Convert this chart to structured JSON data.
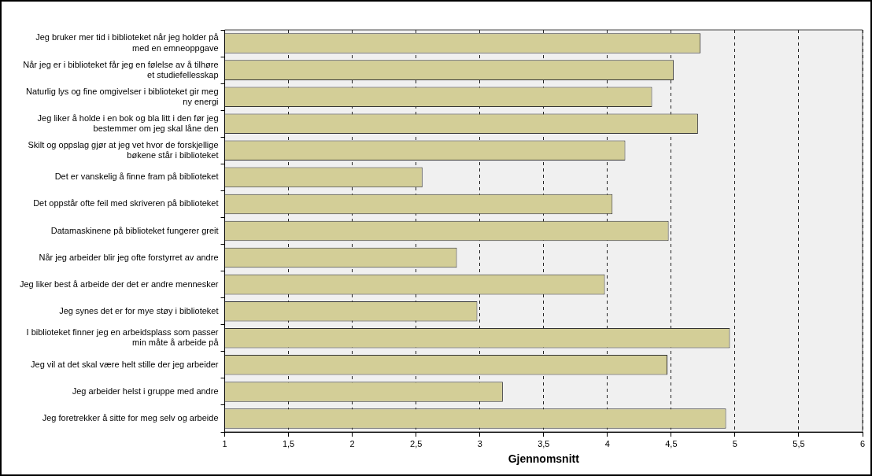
{
  "chart_data": {
    "type": "bar",
    "orientation": "horizontal",
    "xlabel": "Gjennomsnitt",
    "categories": [
      "Jeg bruker mer tid i biblioteket når jeg holder på med en emneoppgave",
      "Når jeg er i biblioteket får jeg en følelse av å tilhøre et studiefellesskap",
      "Naturlig lys og fine omgivelser i biblioteket gir meg ny energi",
      "Jeg liker å holde i en bok og bla litt i den før jeg bestemmer om jeg skal låne den",
      "Skilt og oppslag gjør at jeg vet hvor de forskjellige bøkene står i biblioteket",
      "Det er vanskelig å finne fram på biblioteket",
      "Det oppstår ofte feil med skriveren på biblioteket",
      "Datamaskinene på biblioteket fungerer greit",
      "Når jeg arbeider blir jeg ofte forstyrret av andre",
      "Jeg liker best å arbeide der det er andre mennesker",
      "Jeg synes det er for mye støy i biblioteket",
      "I biblioteket finner jeg en arbeidsplass som passer min måte å arbeide på",
      "Jeg vil at det skal være helt stille der jeg arbeider",
      "Jeg arbeider helst i gruppe med andre",
      "Jeg foretrekker å sitte for meg selv og arbeide"
    ],
    "values": [
      4.73,
      4.52,
      4.35,
      4.71,
      4.14,
      2.55,
      4.04,
      4.48,
      2.82,
      3.98,
      2.98,
      4.96,
      4.47,
      3.18,
      4.93
    ],
    "color": "#d3ce97",
    "xlim": [
      1,
      6
    ],
    "xticks": [
      1,
      {
        "value": 1.5,
        "label": "1,5"
      },
      2,
      {
        "value": 2.5,
        "label": "2,5"
      },
      3,
      {
        "value": 3.5,
        "label": "3,5"
      },
      4,
      {
        "value": 4.5,
        "label": "4,5"
      },
      5,
      {
        "value": 5.5,
        "label": "5,5"
      },
      6
    ],
    "grid": "x",
    "line_style": "dashed",
    "legend": false
  }
}
